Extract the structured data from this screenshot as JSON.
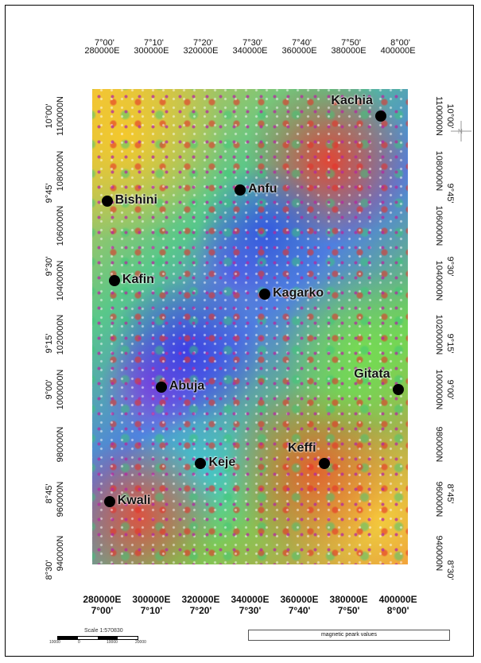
{
  "map": {
    "top_lon_labels": [
      "7°00'",
      "7°10'",
      "7°20'",
      "7°30'",
      "7°40'",
      "7°50'",
      "8°00'"
    ],
    "top_east_labels": [
      "280000E",
      "300000E",
      "320000E",
      "340000E",
      "360000E",
      "380000E",
      "400000E"
    ],
    "bottom_east_labels": [
      "280000E",
      "300000E",
      "320000E",
      "340000E",
      "360000E",
      "380000E",
      "400000E"
    ],
    "bottom_lon_labels": [
      "7°00'",
      "7°10'",
      "7°20'",
      "7°30'",
      "7°40'",
      "7°50'",
      "8°00'"
    ],
    "left_lat_labels": [
      "10°00'",
      "9°45'",
      "9°30'",
      "9°15'",
      "9°00'",
      "8°45'",
      "8°30'"
    ],
    "left_north_labels": [
      "1100000N",
      "1080000N",
      "1060000N",
      "1040000N",
      "1020000N",
      "1000000N",
      "980000N",
      "960000N",
      "940000N"
    ],
    "right_lat_labels": [
      "10°00'",
      "9°45'",
      "9°30'",
      "9°15'",
      "9°00'",
      "8°45'",
      "8°30'"
    ],
    "right_north_labels": [
      "1100000N",
      "1080000N",
      "1060000N",
      "1040000N",
      "1020000N",
      "1000000N",
      "980000N",
      "960000N",
      "940000N"
    ],
    "towns": [
      {
        "name": "Kachia",
        "easting": 393000,
        "northing": 1100000
      },
      {
        "name": "Bishini",
        "easting": 282000,
        "northing": 1069000
      },
      {
        "name": "Anfu",
        "easting": 336000,
        "northing": 1073000
      },
      {
        "name": "Kafin",
        "easting": 285000,
        "northing": 1040000
      },
      {
        "name": "Kagarko",
        "easting": 346000,
        "northing": 1035000
      },
      {
        "name": "Gitata",
        "easting": 400000,
        "northing": 1000000
      },
      {
        "name": "Abuja",
        "easting": 304000,
        "northing": 1001000
      },
      {
        "name": "Keffi",
        "easting": 370000,
        "northing": 973000
      },
      {
        "name": "Keje",
        "easting": 320000,
        "northing": 973000
      },
      {
        "name": "Kwali",
        "easting": 283000,
        "northing": 959000
      }
    ],
    "colors": {
      "dot": "#000000",
      "high": "#e8322a",
      "mid": "#5fd06a",
      "low": "#3b4fe0",
      "peak": "#b42aa0"
    }
  },
  "scale": {
    "title": "Scale 1:570830",
    "ticks": [
      "10000",
      "0",
      "10000",
      "20000"
    ]
  },
  "legend": {
    "label": "magnetic peark values"
  }
}
